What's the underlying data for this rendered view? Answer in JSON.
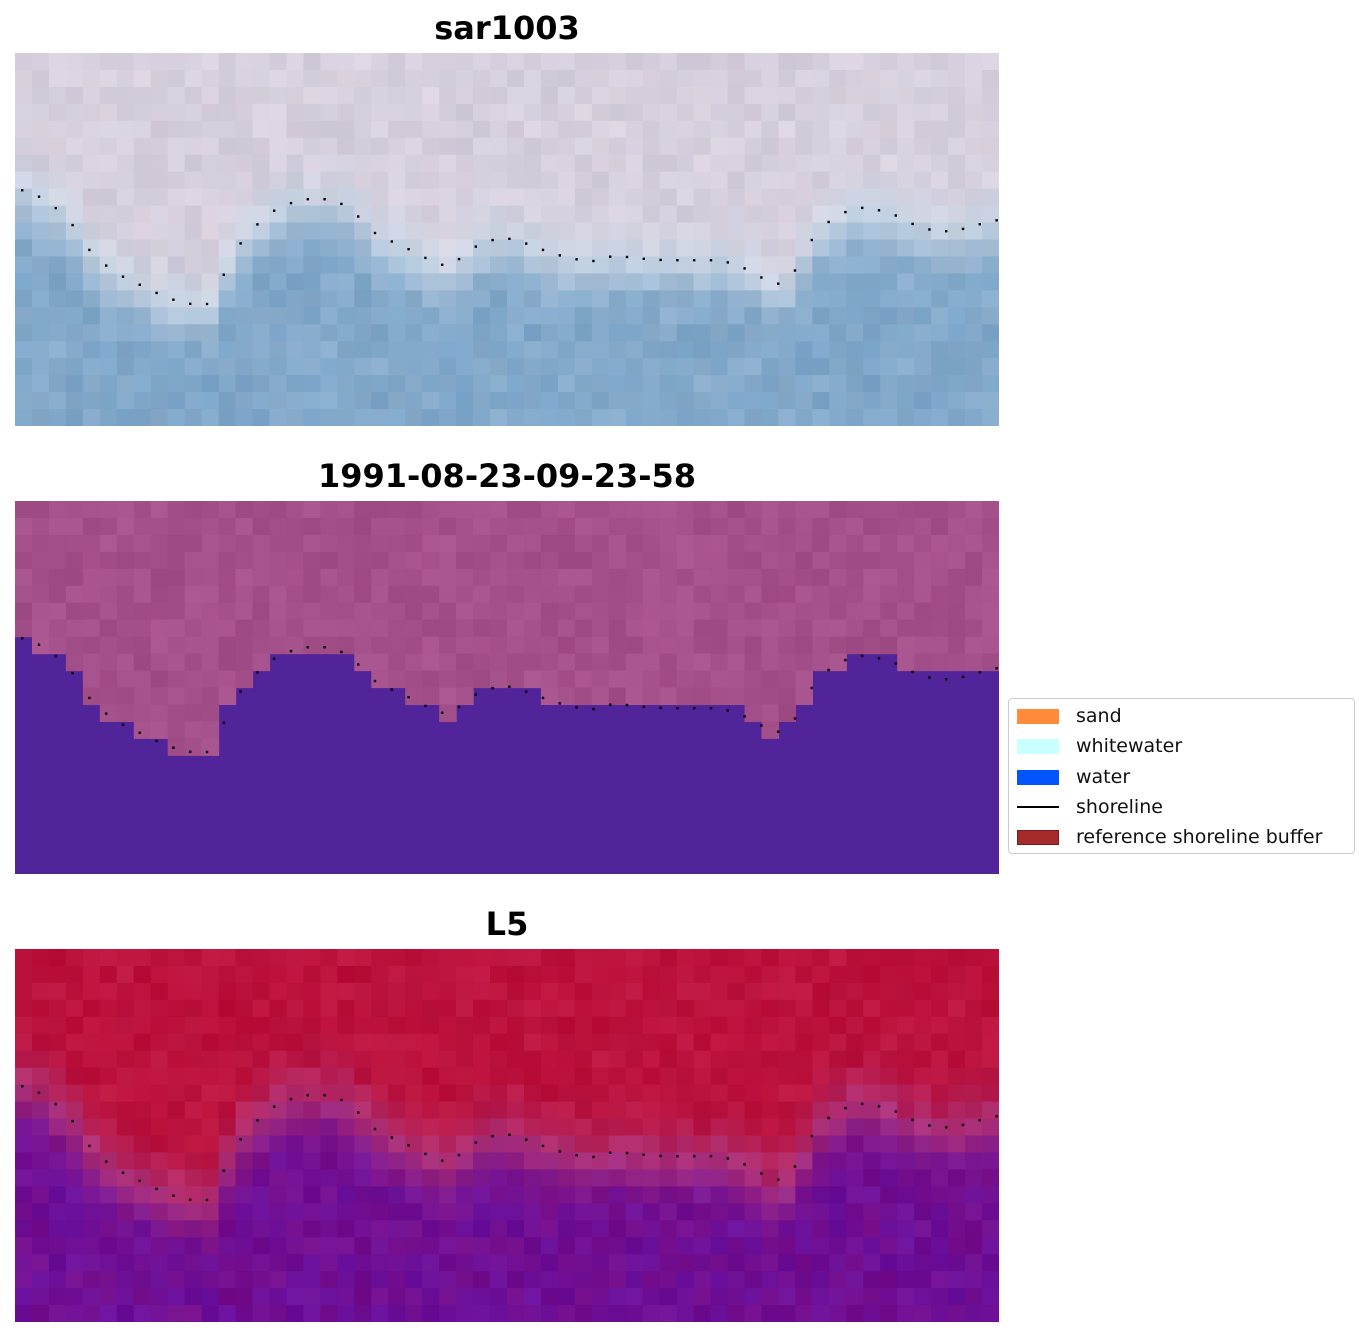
{
  "titles": {
    "rgb": "sar1003",
    "classified": "1991-08-23-09-23-58",
    "index": "L5"
  },
  "legend": {
    "items": [
      {
        "label": "sand",
        "color": "#ff8c3a",
        "kind": "patch"
      },
      {
        "label": "whitewater",
        "color": "#c8ffff",
        "kind": "patch"
      },
      {
        "label": "water",
        "color": "#0055ff",
        "kind": "patch"
      },
      {
        "label": "shoreline",
        "color": "#000000",
        "kind": "line"
      },
      {
        "label": "reference shoreline buffer",
        "color": "#a52a2a",
        "kind": "patch"
      }
    ]
  },
  "colors": {
    "rgb_land": "#d3ccdb",
    "rgb_water": "#7aa4c8",
    "classified_land": "#a4508a",
    "classified_water": "#52249a",
    "index_land": "#bd1640",
    "index_water": "#6a109c"
  }
}
